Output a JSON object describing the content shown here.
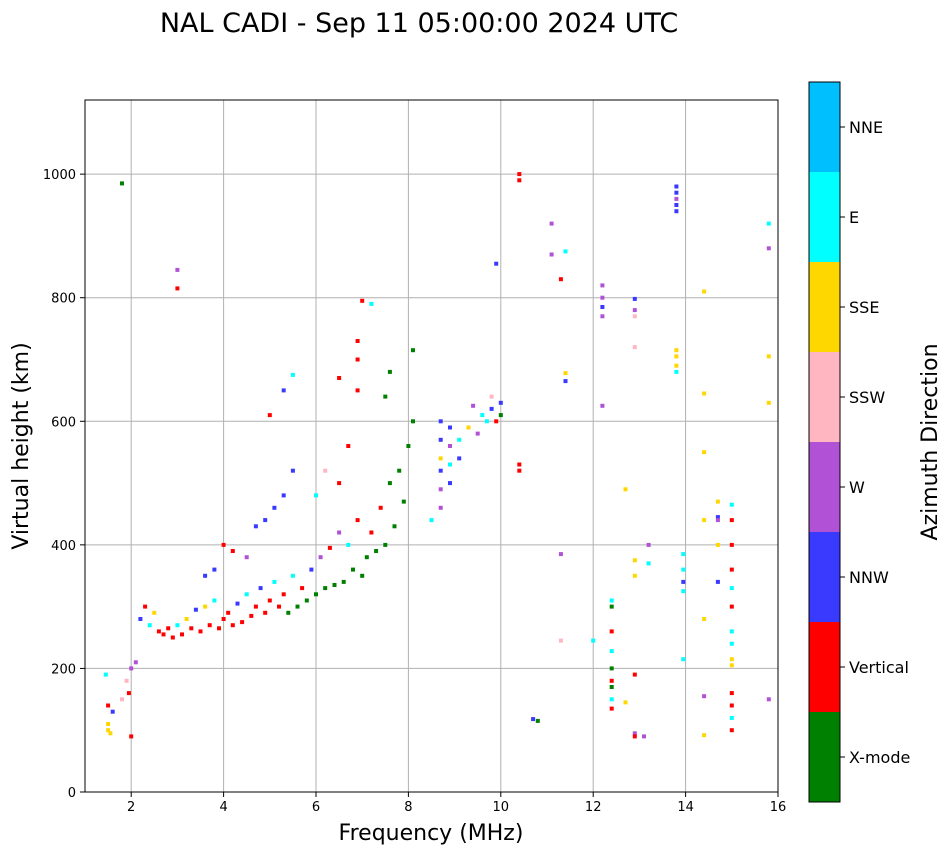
{
  "chart_data": {
    "type": "scatter",
    "title": "NAL CADI - Sep 11 05:00:00 2024 UTC",
    "xlabel": "Frequency (MHz)",
    "ylabel": "Virtual height (km)",
    "xlim": [
      1,
      16
    ],
    "ylim": [
      0,
      1120
    ],
    "xticks": [
      "2",
      "4",
      "6",
      "8",
      "10",
      "12",
      "14",
      "16"
    ],
    "yticks": [
      "0",
      "200",
      "400",
      "600",
      "800",
      "1000"
    ],
    "grid": true,
    "colorbar": {
      "title": "Azimuth Direction",
      "categories": [
        "X-mode",
        "Vertical",
        "NNW",
        "W",
        "SSW",
        "SSE",
        "E",
        "NNE"
      ],
      "colors": [
        "#008000",
        "#ff0000",
        "#3a3aff",
        "#b152d6",
        "#ffb6c1",
        "#ffd700",
        "#00ffff",
        "#00bfff"
      ]
    },
    "points": [
      [
        1.5,
        100,
        "SSE"
      ],
      [
        1.5,
        110,
        "SSE"
      ],
      [
        1.55,
        95,
        "SSE"
      ],
      [
        1.5,
        140,
        "Vertical"
      ],
      [
        1.6,
        130,
        "NNW"
      ],
      [
        1.45,
        190,
        "E"
      ],
      [
        1.8,
        150,
        "SSW"
      ],
      [
        1.9,
        180,
        "SSW"
      ],
      [
        2.0,
        200,
        "W"
      ],
      [
        1.95,
        160,
        "Vertical"
      ],
      [
        2.1,
        210,
        "W"
      ],
      [
        2.0,
        90,
        "Vertical"
      ],
      [
        1.8,
        985,
        "X-mode"
      ],
      [
        3.0,
        845,
        "W"
      ],
      [
        3.0,
        815,
        "Vertical"
      ],
      [
        2.2,
        280,
        "NNW"
      ],
      [
        2.3,
        300,
        "Vertical"
      ],
      [
        2.4,
        270,
        "E"
      ],
      [
        2.5,
        290,
        "SSE"
      ],
      [
        2.6,
        260,
        "Vertical"
      ],
      [
        2.7,
        255,
        "Vertical"
      ],
      [
        2.8,
        265,
        "Vertical"
      ],
      [
        2.9,
        250,
        "Vertical"
      ],
      [
        3.0,
        270,
        "E"
      ],
      [
        3.1,
        255,
        "Vertical"
      ],
      [
        3.2,
        280,
        "SSE"
      ],
      [
        3.3,
        265,
        "Vertical"
      ],
      [
        3.4,
        295,
        "NNW"
      ],
      [
        3.5,
        260,
        "Vertical"
      ],
      [
        3.6,
        300,
        "SSE"
      ],
      [
        3.7,
        270,
        "Vertical"
      ],
      [
        3.8,
        310,
        "E"
      ],
      [
        3.9,
        265,
        "Vertical"
      ],
      [
        4.0,
        280,
        "Vertical"
      ],
      [
        4.1,
        290,
        "Vertical"
      ],
      [
        4.2,
        270,
        "Vertical"
      ],
      [
        4.3,
        305,
        "NNW"
      ],
      [
        4.4,
        275,
        "Vertical"
      ],
      [
        4.5,
        320,
        "E"
      ],
      [
        4.6,
        285,
        "Vertical"
      ],
      [
        4.7,
        300,
        "Vertical"
      ],
      [
        4.8,
        330,
        "NNW"
      ],
      [
        4.9,
        290,
        "Vertical"
      ],
      [
        5.0,
        310,
        "Vertical"
      ],
      [
        5.1,
        340,
        "E"
      ],
      [
        5.2,
        300,
        "Vertical"
      ],
      [
        5.3,
        320,
        "Vertical"
      ],
      [
        5.4,
        290,
        "X-mode"
      ],
      [
        5.5,
        350,
        "E"
      ],
      [
        5.6,
        300,
        "X-mode"
      ],
      [
        5.7,
        330,
        "Vertical"
      ],
      [
        5.8,
        310,
        "X-mode"
      ],
      [
        5.9,
        360,
        "NNW"
      ],
      [
        6.0,
        320,
        "X-mode"
      ],
      [
        6.1,
        380,
        "W"
      ],
      [
        6.2,
        330,
        "X-mode"
      ],
      [
        6.3,
        395,
        "Vertical"
      ],
      [
        6.4,
        335,
        "X-mode"
      ],
      [
        6.5,
        420,
        "W"
      ],
      [
        6.6,
        340,
        "X-mode"
      ],
      [
        6.7,
        400,
        "E"
      ],
      [
        6.8,
        360,
        "X-mode"
      ],
      [
        6.9,
        440,
        "Vertical"
      ],
      [
        7.0,
        350,
        "X-mode"
      ],
      [
        7.1,
        380,
        "X-mode"
      ],
      [
        7.2,
        420,
        "Vertical"
      ],
      [
        7.3,
        390,
        "X-mode"
      ],
      [
        7.4,
        460,
        "Vertical"
      ],
      [
        7.5,
        400,
        "X-mode"
      ],
      [
        7.6,
        500,
        "X-mode"
      ],
      [
        7.7,
        430,
        "X-mode"
      ],
      [
        7.8,
        520,
        "X-mode"
      ],
      [
        7.9,
        470,
        "X-mode"
      ],
      [
        8.0,
        560,
        "X-mode"
      ],
      [
        8.1,
        600,
        "X-mode"
      ],
      [
        4.0,
        400,
        "Vertical"
      ],
      [
        4.2,
        390,
        "Vertical"
      ],
      [
        4.5,
        380,
        "W"
      ],
      [
        4.7,
        430,
        "NNW"
      ],
      [
        4.9,
        440,
        "NNW"
      ],
      [
        5.1,
        460,
        "NNW"
      ],
      [
        5.3,
        480,
        "NNW"
      ],
      [
        5.5,
        520,
        "NNW"
      ],
      [
        3.8,
        360,
        "NNW"
      ],
      [
        3.6,
        350,
        "NNW"
      ],
      [
        6.0,
        480,
        "E"
      ],
      [
        6.2,
        520,
        "SSW"
      ],
      [
        6.5,
        500,
        "Vertical"
      ],
      [
        6.7,
        560,
        "Vertical"
      ],
      [
        6.9,
        650,
        "Vertical"
      ],
      [
        6.9,
        730,
        "Vertical"
      ],
      [
        6.9,
        700,
        "Vertical"
      ],
      [
        7.0,
        795,
        "Vertical"
      ],
      [
        7.2,
        790,
        "E"
      ],
      [
        6.5,
        670,
        "Vertical"
      ],
      [
        5.5,
        675,
        "E"
      ],
      [
        5.3,
        650,
        "NNW"
      ],
      [
        5.0,
        610,
        "Vertical"
      ],
      [
        7.5,
        640,
        "X-mode"
      ],
      [
        7.6,
        680,
        "X-mode"
      ],
      [
        8.1,
        715,
        "X-mode"
      ],
      [
        8.7,
        600,
        "NNW"
      ],
      [
        8.7,
        570,
        "NNW"
      ],
      [
        8.7,
        540,
        "SSE"
      ],
      [
        8.7,
        520,
        "NNW"
      ],
      [
        8.7,
        490,
        "W"
      ],
      [
        8.7,
        460,
        "W"
      ],
      [
        8.9,
        590,
        "NNW"
      ],
      [
        8.9,
        560,
        "W"
      ],
      [
        8.9,
        530,
        "E"
      ],
      [
        8.9,
        500,
        "NNW"
      ],
      [
        9.1,
        570,
        "E"
      ],
      [
        9.1,
        540,
        "NNW"
      ],
      [
        9.3,
        590,
        "SSE"
      ],
      [
        9.5,
        580,
        "W"
      ],
      [
        9.6,
        610,
        "E"
      ],
      [
        9.7,
        600,
        "E"
      ],
      [
        9.8,
        620,
        "NNW"
      ],
      [
        9.9,
        600,
        "Vertical"
      ],
      [
        10.0,
        610,
        "X-mode"
      ],
      [
        10.0,
        630,
        "NNW"
      ],
      [
        9.8,
        640,
        "SSW"
      ],
      [
        9.4,
        625,
        "W"
      ],
      [
        8.5,
        440,
        "E"
      ],
      [
        10.4,
        1000,
        "Vertical"
      ],
      [
        10.4,
        990,
        "Vertical"
      ],
      [
        10.4,
        530,
        "Vertical"
      ],
      [
        10.4,
        520,
        "Vertical"
      ],
      [
        9.9,
        855,
        "NNW"
      ],
      [
        10.8,
        115,
        "X-mode"
      ],
      [
        10.7,
        118,
        "NNW"
      ],
      [
        11.1,
        920,
        "W"
      ],
      [
        11.1,
        870,
        "W"
      ],
      [
        11.3,
        830,
        "Vertical"
      ],
      [
        11.4,
        875,
        "E"
      ],
      [
        11.4,
        665,
        "NNW"
      ],
      [
        11.4,
        678,
        "SSE"
      ],
      [
        11.3,
        385,
        "W"
      ],
      [
        11.3,
        245,
        "SSW"
      ],
      [
        12.0,
        245,
        "E"
      ],
      [
        12.2,
        820,
        "W"
      ],
      [
        12.2,
        800,
        "W"
      ],
      [
        12.2,
        785,
        "NNW"
      ],
      [
        12.2,
        770,
        "W"
      ],
      [
        12.2,
        625,
        "W"
      ],
      [
        12.4,
        310,
        "E"
      ],
      [
        12.4,
        300,
        "X-mode"
      ],
      [
        12.4,
        260,
        "Vertical"
      ],
      [
        12.4,
        228,
        "E"
      ],
      [
        12.4,
        200,
        "X-mode"
      ],
      [
        12.4,
        180,
        "Vertical"
      ],
      [
        12.4,
        170,
        "X-mode"
      ],
      [
        12.4,
        150,
        "E"
      ],
      [
        12.4,
        135,
        "Vertical"
      ],
      [
        12.7,
        145,
        "SSE"
      ],
      [
        12.7,
        490,
        "SSE"
      ],
      [
        12.9,
        375,
        "SSE"
      ],
      [
        12.9,
        350,
        "SSE"
      ],
      [
        12.9,
        190,
        "Vertical"
      ],
      [
        12.9,
        95,
        "W"
      ],
      [
        12.9,
        90,
        "Vertical"
      ],
      [
        13.1,
        90,
        "W"
      ],
      [
        12.9,
        798,
        "NNW"
      ],
      [
        12.9,
        780,
        "W"
      ],
      [
        12.9,
        770,
        "SSW"
      ],
      [
        12.9,
        720,
        "SSW"
      ],
      [
        13.2,
        400,
        "W"
      ],
      [
        13.2,
        370,
        "E"
      ],
      [
        13.8,
        980,
        "NNW"
      ],
      [
        13.8,
        970,
        "NNW"
      ],
      [
        13.8,
        960,
        "W"
      ],
      [
        13.8,
        950,
        "NNW"
      ],
      [
        13.8,
        940,
        "NNW"
      ],
      [
        13.8,
        715,
        "SSE"
      ],
      [
        13.8,
        705,
        "SSE"
      ],
      [
        13.8,
        690,
        "SSE"
      ],
      [
        13.8,
        680,
        "E"
      ],
      [
        13.95,
        385,
        "E"
      ],
      [
        13.95,
        360,
        "E"
      ],
      [
        13.95,
        340,
        "NNW"
      ],
      [
        13.95,
        325,
        "E"
      ],
      [
        13.95,
        215,
        "E"
      ],
      [
        14.4,
        810,
        "SSE"
      ],
      [
        14.4,
        645,
        "SSE"
      ],
      [
        14.4,
        550,
        "SSE"
      ],
      [
        14.4,
        440,
        "SSE"
      ],
      [
        14.4,
        280,
        "SSE"
      ],
      [
        14.4,
        155,
        "W"
      ],
      [
        14.4,
        92,
        "SSE"
      ],
      [
        14.7,
        470,
        "SSE"
      ],
      [
        14.7,
        445,
        "NNW"
      ],
      [
        14.7,
        440,
        "W"
      ],
      [
        14.7,
        400,
        "SSE"
      ],
      [
        14.7,
        340,
        "NNW"
      ],
      [
        15.0,
        465,
        "E"
      ],
      [
        15.0,
        440,
        "Vertical"
      ],
      [
        15.0,
        400,
        "Vertical"
      ],
      [
        15.0,
        360,
        "Vertical"
      ],
      [
        15.0,
        330,
        "E"
      ],
      [
        15.0,
        300,
        "Vertical"
      ],
      [
        15.0,
        260,
        "E"
      ],
      [
        15.0,
        240,
        "E"
      ],
      [
        15.0,
        215,
        "SSE"
      ],
      [
        15.0,
        205,
        "SSE"
      ],
      [
        15.0,
        160,
        "Vertical"
      ],
      [
        15.0,
        140,
        "Vertical"
      ],
      [
        15.0,
        120,
        "E"
      ],
      [
        15.0,
        100,
        "Vertical"
      ],
      [
        15.8,
        920,
        "E"
      ],
      [
        15.8,
        880,
        "W"
      ],
      [
        15.8,
        705,
        "SSE"
      ],
      [
        15.8,
        630,
        "SSE"
      ],
      [
        15.8,
        150,
        "W"
      ]
    ],
    "segments": [
      [
        1.0,
        16.0,
        0,
        0,
        ""
      ]
    ]
  }
}
